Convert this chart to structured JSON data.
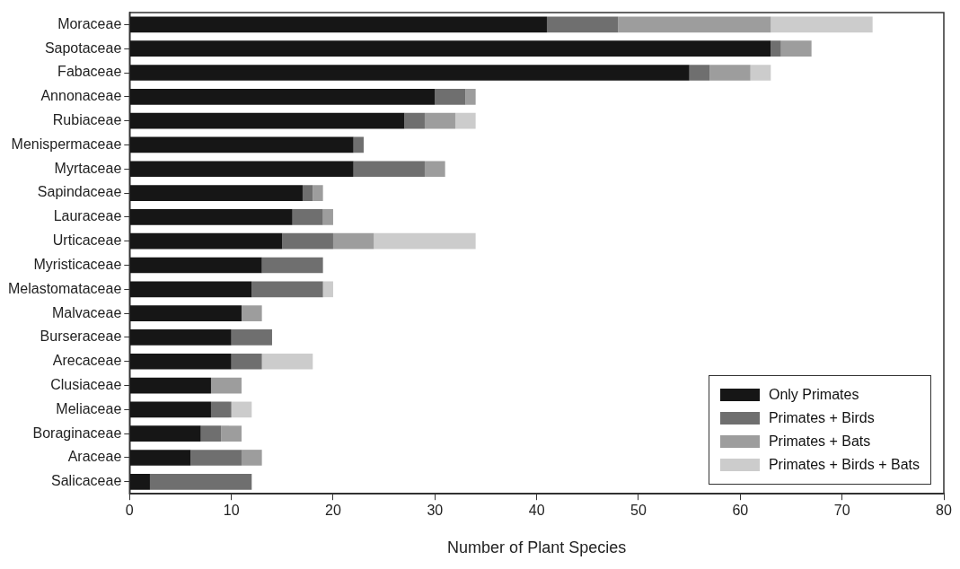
{
  "chart_data": {
    "type": "bar",
    "orientation": "horizontal",
    "stacked": true,
    "xlabel": "Number of Plant Species",
    "categories": [
      "Moraceae",
      "Sapotaceae",
      "Fabaceae",
      "Annonaceae",
      "Rubiaceae",
      "Menispermaceae",
      "Myrtaceae",
      "Sapindaceae",
      "Lauraceae",
      "Urticaceae",
      "Myristicaceae",
      "Melastomataceae",
      "Malvaceae",
      "Burseraceae",
      "Arecaceae",
      "Clusiaceae",
      "Meliaceae",
      "Boraginaceae",
      "Araceae",
      "Salicaceae"
    ],
    "series": [
      {
        "name": "Only Primates",
        "color": "#161616",
        "values": [
          41,
          63,
          55,
          30,
          27,
          22,
          22,
          17,
          16,
          15,
          13,
          12,
          11,
          10,
          10,
          8,
          8,
          7,
          6,
          2
        ]
      },
      {
        "name": "Primates + Birds",
        "color": "#6f6f6f",
        "values": [
          7,
          1,
          2,
          3,
          2,
          1,
          7,
          1,
          3,
          5,
          6,
          7,
          0,
          4,
          3,
          0,
          2,
          2,
          5,
          10
        ]
      },
      {
        "name": "Primates + Bats",
        "color": "#9d9d9d",
        "values": [
          15,
          3,
          4,
          1,
          3,
          0,
          2,
          1,
          1,
          4,
          0,
          0,
          2,
          0,
          0,
          3,
          0,
          2,
          2,
          0
        ]
      },
      {
        "name": "Primates + Birds + Bats",
        "color": "#cccccc",
        "values": [
          10,
          0,
          2,
          0,
          2,
          0,
          0,
          0,
          0,
          10,
          0,
          1,
          0,
          0,
          5,
          0,
          2,
          0,
          0,
          0
        ]
      }
    ],
    "xlim": [
      0,
      80
    ],
    "xticks": [
      0,
      10,
      20,
      30,
      40,
      50,
      60,
      70,
      80
    ],
    "grid": false,
    "legend": "bottom right"
  }
}
